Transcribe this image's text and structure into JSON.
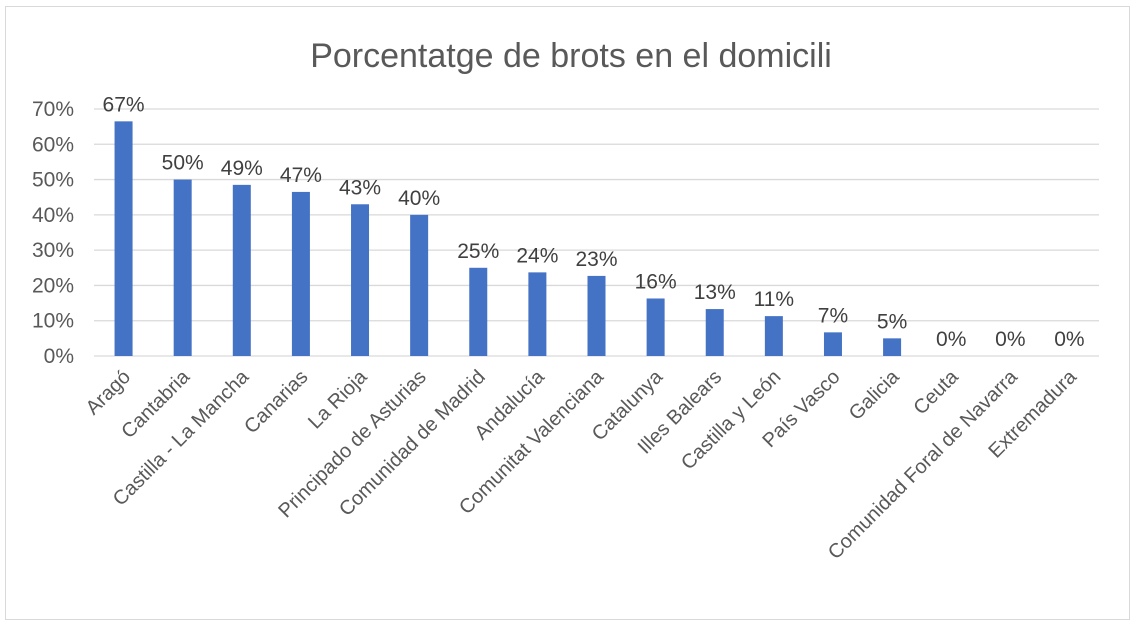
{
  "chart_data": {
    "type": "bar",
    "title": "Porcentatge de brots en el domicili",
    "xlabel": "",
    "ylabel": "",
    "ylim": [
      0,
      70
    ],
    "yticks": [
      "0%",
      "10%",
      "20%",
      "30%",
      "40%",
      "50%",
      "60%",
      "70%"
    ],
    "ytick_values": [
      0,
      10,
      20,
      30,
      40,
      50,
      60,
      70
    ],
    "grid": true,
    "legend": "none",
    "bar_color": "#4472C4",
    "categories": [
      "Aragó",
      "Cantabria",
      "Castilla - La Mancha",
      "Canarias",
      "La Rioja",
      "Principado de Asturias",
      "Comunidad de Madrid",
      "Andalucía",
      "Comunitat Valenciana",
      "Catalunya",
      "Illes Balears",
      "Castilla y León",
      "País Vasco",
      "Galicia",
      "Ceuta",
      "Comunidad Foral de Navarra",
      "Extremadura"
    ],
    "values": [
      66.5,
      50,
      48.5,
      46.5,
      43,
      40,
      25,
      23.7,
      22.7,
      16.3,
      13.3,
      11.3,
      6.7,
      5,
      0,
      0,
      0
    ],
    "data_labels": [
      "67%",
      "50%",
      "49%",
      "47%",
      "43%",
      "40%",
      "25%",
      "24%",
      "23%",
      "16%",
      "13%",
      "11%",
      "7%",
      "5%",
      "0%",
      "0%",
      "0%"
    ]
  }
}
